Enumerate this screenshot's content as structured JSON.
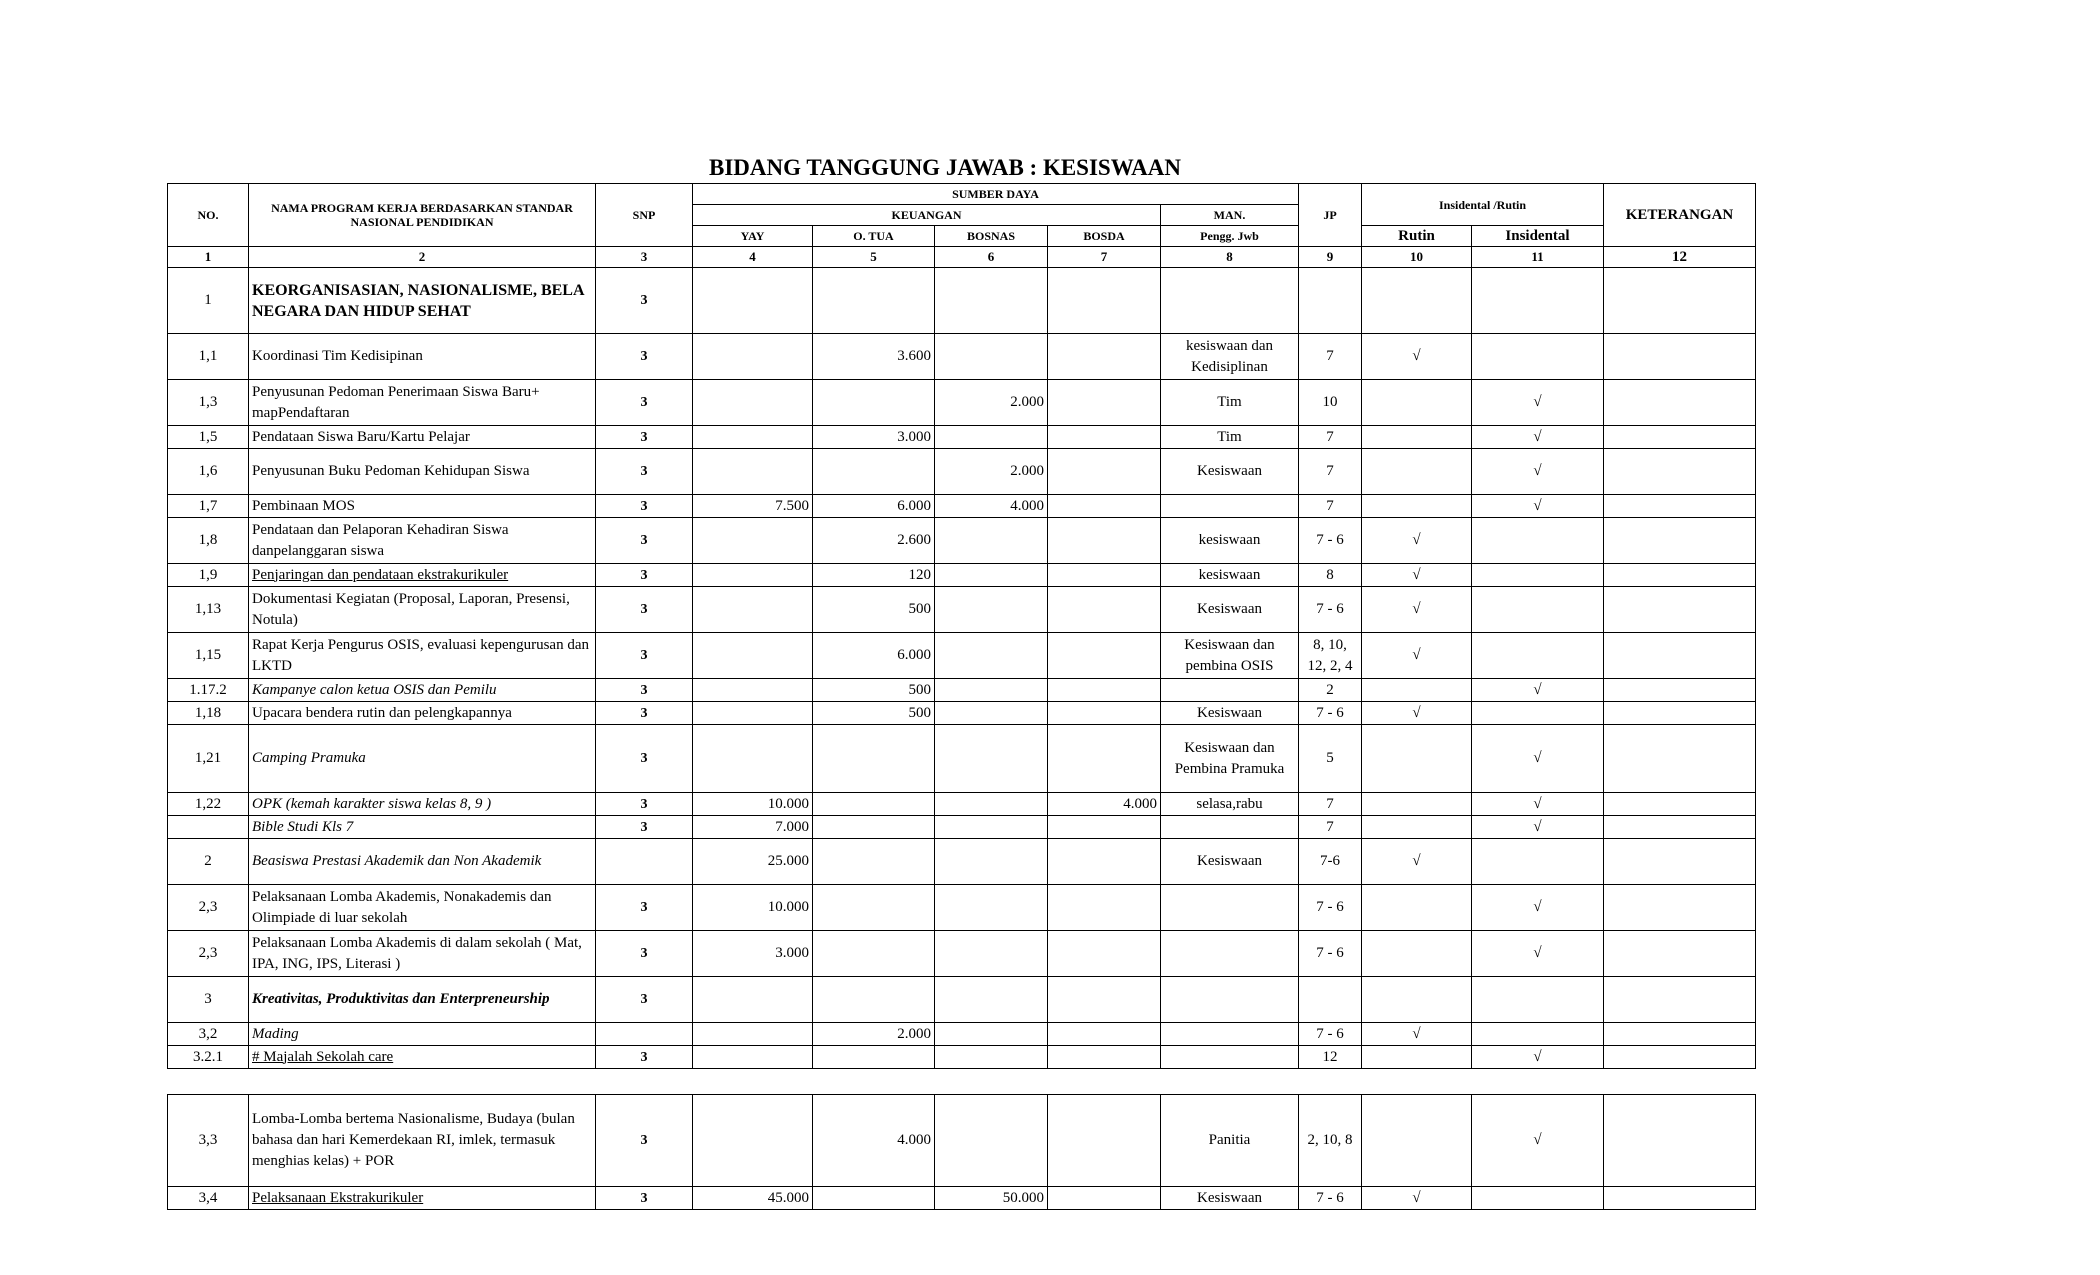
{
  "title": "BIDANG TANGGUNG JAWAB :  KESISWAAN",
  "header": {
    "no": "NO.",
    "nama": "NAMA PROGRAM KERJA BERDASARKAN STANDAR NASIONAL PENDIDIKAN",
    "snp": "SNP",
    "sumber_daya": "SUMBER DAYA",
    "keuangan": "KEUANGAN",
    "man": "MAN.",
    "yay": "YAY",
    "otua": "O. TUA",
    "bosnas": "BOSNAS",
    "bosda": "BOSDA",
    "pengg": "Pengg. Jwb",
    "jp": "JP",
    "insidental_rutin": "Insidental /Rutin",
    "rutin": "Rutin",
    "insidental": "Insidental",
    "keterangan": "KETERANGAN",
    "col_numbers": [
      "1",
      "2",
      "3",
      "4",
      "5",
      "6",
      "7",
      "8",
      "9",
      "10",
      "11",
      "12"
    ]
  },
  "rows": [
    {
      "no": "1",
      "name": "KEORGANISASIAN, NASIONALISME, BELA NEGARA DAN HIDUP SEHAT",
      "style": "bold caps",
      "snp": "3",
      "yay": "",
      "otua": "",
      "bosnas": "",
      "bosda": "",
      "man": "",
      "jp": "",
      "rutin": "",
      "insidental": "",
      "ket": ""
    },
    {
      "no": "1,1",
      "name": "Koordinasi Tim Kedisipinan",
      "style": "",
      "snp": "3",
      "yay": "",
      "otua": "3.600",
      "bosnas": "",
      "bosda": "",
      "man": "kesiswaan dan Kedisiplinan",
      "jp": "7",
      "rutin": "√",
      "insidental": "",
      "ket": ""
    },
    {
      "no": "1,3",
      "name": "Penyusunan Pedoman Penerimaan Siswa Baru+ mapPendaftaran",
      "style": "",
      "snp": "3",
      "yay": "",
      "otua": "",
      "bosnas": "2.000",
      "bosda": "",
      "man": "Tim",
      "jp": "10",
      "rutin": "",
      "insidental": "√",
      "ket": ""
    },
    {
      "no": "1,5",
      "name": "Pendataan Siswa Baru/Kartu Pelajar",
      "style": "",
      "snp": "3",
      "yay": "",
      "otua": "3.000",
      "bosnas": "",
      "bosda": "",
      "man": "Tim",
      "jp": "7",
      "rutin": "",
      "insidental": "√",
      "ket": ""
    },
    {
      "no": "1,6",
      "name": "Penyusunan Buku Pedoman Kehidupan Siswa",
      "style": "",
      "snp": "3",
      "yay": "",
      "otua": "",
      "bosnas": "2.000",
      "bosda": "",
      "man": "Kesiswaan",
      "jp": "7",
      "rutin": "",
      "insidental": "√",
      "ket": ""
    },
    {
      "no": "1,7",
      "name": "Pembinaan MOS",
      "style": "",
      "snp": "3",
      "yay": "7.500",
      "otua": "6.000",
      "bosnas": "4.000",
      "bosda": "",
      "man": "",
      "jp": "7",
      "rutin": "",
      "insidental": "√",
      "ket": ""
    },
    {
      "no": "1,8",
      "name": "Pendataan dan Pelaporan Kehadiran Siswa danpelanggaran siswa",
      "style": "",
      "snp": "3",
      "yay": "",
      "otua": "2.600",
      "bosnas": "",
      "bosda": "",
      "man": "kesiswaan",
      "jp": "7 - 6",
      "rutin": "√",
      "insidental": "",
      "ket": ""
    },
    {
      "no": "1,9",
      "name": "Penjaringan dan pendataan ekstrakurikuler",
      "style": "underline",
      "snp": "3",
      "yay": "",
      "otua": "120",
      "bosnas": "",
      "bosda": "",
      "man": "kesiswaan",
      "jp": "8",
      "rutin": "√",
      "insidental": "",
      "ket": ""
    },
    {
      "no": "1,13",
      "name": "Dokumentasi Kegiatan (Proposal, Laporan, Presensi, Notula)",
      "style": "",
      "snp": "3",
      "yay": "",
      "otua": "500",
      "bosnas": "",
      "bosda": "",
      "man": "Kesiswaan",
      "jp": "7 - 6",
      "rutin": "√",
      "insidental": "",
      "ket": ""
    },
    {
      "no": "1,15",
      "name": "Rapat Kerja Pengurus OSIS, evaluasi kepengurusan dan LKTD",
      "style": "",
      "snp": "3",
      "yay": "",
      "otua": "6.000",
      "bosnas": "",
      "bosda": "",
      "man": "Kesiswaan dan pembina OSIS",
      "jp": "8, 10, 12, 2, 4",
      "rutin": "√",
      "insidental": "",
      "ket": ""
    },
    {
      "no": "1.17.2",
      "name": "Kampanye calon ketua OSIS dan Pemilu",
      "style": "italic",
      "snp": "3",
      "yay": "",
      "otua": "500",
      "bosnas": "",
      "bosda": "",
      "man": "",
      "jp": "2",
      "rutin": "",
      "insidental": "√",
      "ket": ""
    },
    {
      "no": "1,18",
      "name": "Upacara bendera rutin dan pelengkapannya",
      "style": "",
      "snp": "3",
      "yay": "",
      "otua": "500",
      "bosnas": "",
      "bosda": "",
      "man": "Kesiswaan",
      "jp": "7 - 6",
      "rutin": "√",
      "insidental": "",
      "ket": ""
    },
    {
      "no": "1,21",
      "name": "Camping Pramuka",
      "style": "italic",
      "snp": "3",
      "yay": "",
      "otua": "",
      "bosnas": "",
      "bosda": "",
      "man": "Kesiswaan dan Pembina Pramuka",
      "jp": "5",
      "rutin": "",
      "insidental": "√",
      "ket": ""
    },
    {
      "no": "1,22",
      "name": "OPK (kemah karakter siswa kelas 8, 9 )",
      "style": "italic",
      "snp": "3",
      "yay": "10.000",
      "otua": "",
      "bosnas": "",
      "bosda": "4.000",
      "man": "selasa,rabu",
      "jp": "7",
      "rutin": "",
      "insidental": "√",
      "ket": ""
    },
    {
      "no": "",
      "name": "Bible Studi Kls 7",
      "style": "italic",
      "snp": "3",
      "yay": "7.000",
      "otua": "",
      "bosnas": "",
      "bosda": "",
      "man": "",
      "jp": "7",
      "rutin": "",
      "insidental": "√",
      "ket": ""
    },
    {
      "no": "2",
      "name": "Beasiswa Prestasi Akademik dan Non Akademik",
      "style": "italic",
      "snp": "",
      "yay": "25.000",
      "otua": "",
      "bosnas": "",
      "bosda": "",
      "man": "Kesiswaan",
      "jp": "7-6",
      "rutin": "√",
      "insidental": "",
      "ket": ""
    },
    {
      "no": "2,3",
      "name": "Pelaksanaan Lomba Akademis, Nonakademis dan Olimpiade di luar sekolah",
      "style": "",
      "snp": "3",
      "yay": "10.000",
      "otua": "",
      "bosnas": "",
      "bosda": "",
      "man": "",
      "jp": "7 - 6",
      "rutin": "",
      "insidental": "√",
      "ket": ""
    },
    {
      "no": "2,3",
      "name": "Pelaksanaan Lomba Akademis di dalam sekolah ( Mat, IPA, ING, IPS, Literasi )",
      "style": "",
      "snp": "3",
      "yay": "3.000",
      "otua": "",
      "bosnas": "",
      "bosda": "",
      "man": "",
      "jp": "7 - 6",
      "rutin": "",
      "insidental": "√",
      "ket": ""
    },
    {
      "no": "3",
      "name": "Kreativitas, Produktivitas dan Enterpreneurship",
      "style": "bold italic",
      "snp": "3",
      "yay": "",
      "otua": "",
      "bosnas": "",
      "bosda": "",
      "man": "",
      "jp": "",
      "rutin": "",
      "insidental": "",
      "ket": ""
    },
    {
      "no": "3,2",
      "name": "Mading",
      "style": "italic",
      "snp": "",
      "yay": "",
      "otua": "2.000",
      "bosnas": "",
      "bosda": "",
      "man": "",
      "jp": "7 - 6",
      "rutin": "√",
      "insidental": "",
      "ket": ""
    },
    {
      "no": "3.2.1",
      "name": "# Majalah Sekolah care",
      "style": "underline",
      "snp": "3",
      "yay": "",
      "otua": "",
      "bosnas": "",
      "bosda": "",
      "man": "",
      "jp": "12",
      "rutin": "",
      "insidental": "√",
      "ket": ""
    }
  ],
  "rows2": [
    {
      "no": "3,3",
      "name": "Lomba-Lomba bertema Nasionalisme, Budaya (bulan bahasa dan hari Kemerdekaan RI, imlek, termasuk menghias kelas) + POR",
      "style": "",
      "snp": "3",
      "yay": "",
      "otua": "4.000",
      "bosnas": "",
      "bosda": "",
      "man": "Panitia",
      "jp": "2, 10, 8",
      "rutin": "",
      "insidental": "√",
      "ket": ""
    },
    {
      "no": "3,4",
      "name": "Pelaksanaan Ekstrakurikuler",
      "style": "underline",
      "snp": "3",
      "yay": "45.000",
      "otua": "",
      "bosnas": "50.000",
      "bosda": "",
      "man": "Kesiswaan",
      "jp": "7 - 6",
      "rutin": "√",
      "insidental": "",
      "ket": ""
    }
  ]
}
